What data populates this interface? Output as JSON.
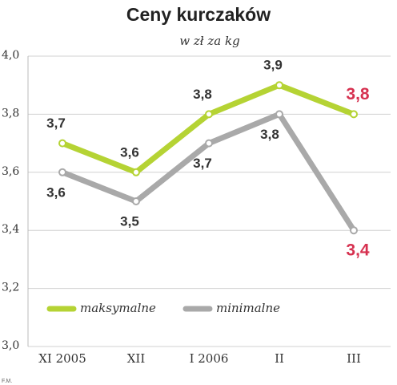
{
  "chart_data": {
    "type": "line",
    "title": "Ceny kurczaków",
    "subtitle": "w zł za kg",
    "source": "F.M.",
    "categories": [
      "XI 2005",
      "XII",
      "I 2006",
      "II",
      "III"
    ],
    "series": [
      {
        "name": "maksymalne",
        "color": "#b5d334",
        "values": [
          3.7,
          3.6,
          3.8,
          3.9,
          3.8
        ],
        "value_labels": [
          "3,7",
          "3,6",
          "3,8",
          "3,9",
          "3,8"
        ]
      },
      {
        "name": "minimalne",
        "color": "#a9a9a9",
        "values": [
          3.6,
          3.5,
          3.7,
          3.8,
          3.4
        ],
        "value_labels": [
          "3,6",
          "3,5",
          "3,7",
          "3,8",
          "3,4"
        ]
      }
    ],
    "ylim": [
      3.0,
      4.0
    ],
    "yticks": [
      {
        "value": 3.0,
        "label": "3,0"
      },
      {
        "value": 3.2,
        "label": "3,2"
      },
      {
        "value": 3.4,
        "label": "3,4"
      },
      {
        "value": 3.6,
        "label": "3,6"
      },
      {
        "value": 3.8,
        "label": "3,8"
      },
      {
        "value": 4.0,
        "label": "4,0"
      }
    ],
    "grid": true,
    "legend": "lower left",
    "last_label_color": "#d6304f"
  }
}
